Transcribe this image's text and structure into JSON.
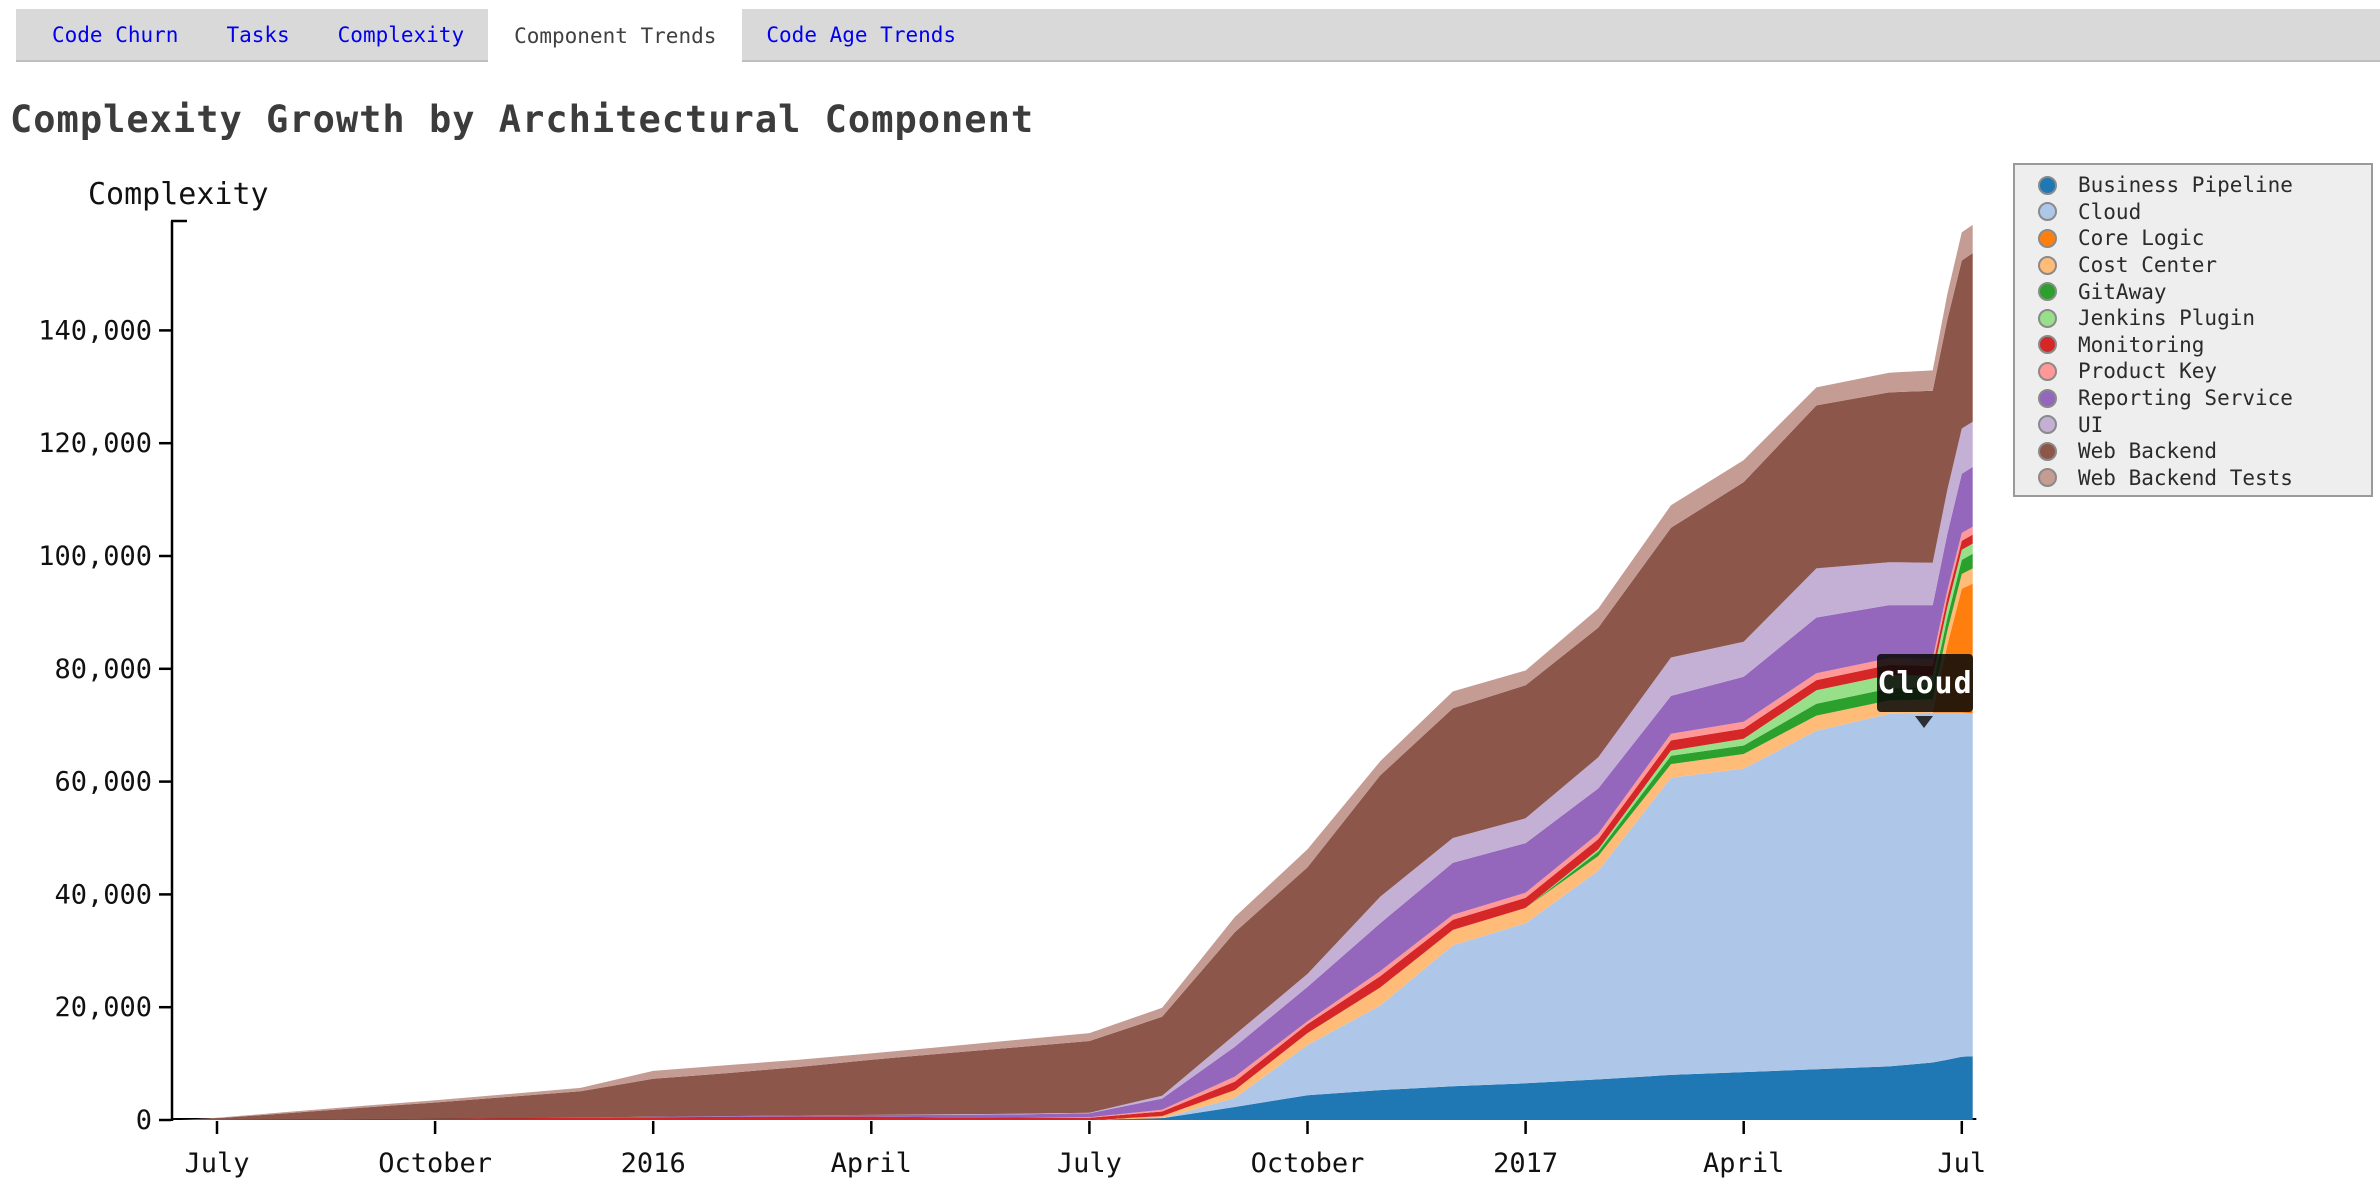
{
  "tabs": [
    {
      "label": "Code Churn",
      "active": false
    },
    {
      "label": "Tasks",
      "active": false
    },
    {
      "label": "Complexity",
      "active": false
    },
    {
      "label": "Component Trends",
      "active": true
    },
    {
      "label": "Code Age Trends",
      "active": false
    }
  ],
  "header": {
    "title": "Complexity Growth by Architectural Component"
  },
  "tooltip": {
    "label": "Cloud"
  },
  "colors": {
    "tab_link": "#0000ee",
    "tab_active_text": "#404040",
    "tabbar_bg": "#d9d9d9",
    "legend_bg": "#eeeeee",
    "legend_border": "#9a9a9a",
    "tooltip_bg": "#0a0a0a",
    "axis": "#000000",
    "title_text": "#3c3c3c"
  },
  "chart_data": {
    "type": "area",
    "stacked": true,
    "title": "Complexity Growth by Architectural Component",
    "xlabel": "",
    "ylabel": "Complexity",
    "ylim": [
      0,
      159000
    ],
    "yticks": [
      0,
      20000,
      40000,
      60000,
      80000,
      100000,
      120000,
      140000
    ],
    "grid": false,
    "legend_position": "right",
    "x_unit": "months_since_2015-07-01",
    "x": [
      -0.5,
      0,
      1,
      2,
      3,
      4,
      5,
      6,
      7,
      8,
      9,
      10,
      11,
      12,
      13,
      14,
      15,
      16,
      17,
      18,
      19,
      20,
      21,
      22,
      23,
      23.6,
      23.8,
      24,
      24.15
    ],
    "x_dates": [
      "2015-06-15",
      "2015-07-01",
      "2015-08-01",
      "2015-09-01",
      "2015-10-01",
      "2015-11-01",
      "2015-12-01",
      "2016-01-01",
      "2016-02-01",
      "2016-03-01",
      "2016-04-01",
      "2016-05-01",
      "2016-06-01",
      "2016-07-01",
      "2016-08-01",
      "2016-09-01",
      "2016-10-01",
      "2016-11-01",
      "2016-12-01",
      "2017-01-01",
      "2017-02-01",
      "2017-03-01",
      "2017-04-01",
      "2017-05-01",
      "2017-06-01",
      "2017-06-19",
      "2017-06-25",
      "2017-07-01",
      "2017-07-05"
    ],
    "x_ticks": [
      {
        "m": 0,
        "label": "July"
      },
      {
        "m": 3,
        "label": "October"
      },
      {
        "m": 6,
        "label": "2016"
      },
      {
        "m": 9,
        "label": "April"
      },
      {
        "m": 12,
        "label": "July"
      },
      {
        "m": 15,
        "label": "October"
      },
      {
        "m": 18,
        "label": "2017"
      },
      {
        "m": 21,
        "label": "April"
      },
      {
        "m": 24,
        "label": "Jul"
      }
    ],
    "series": [
      {
        "name": "Business Pipeline",
        "color": "#1f77b4",
        "values": [
          0,
          0,
          0,
          0,
          0,
          0,
          0,
          0,
          0,
          0,
          0,
          0,
          0,
          0,
          300,
          2300,
          4400,
          5300,
          6000,
          6500,
          7200,
          8000,
          8500,
          9000,
          9500,
          10200,
          10700,
          11200,
          11300
        ]
      },
      {
        "name": "Cloud",
        "color": "#aec7e8",
        "values": [
          0,
          0,
          0,
          0,
          0,
          0,
          0,
          0,
          0,
          0,
          0,
          0,
          0,
          0,
          0,
          1600,
          8900,
          15000,
          25000,
          28400,
          37000,
          52700,
          53800,
          60000,
          62500,
          62000,
          61500,
          61000,
          60800
        ]
      },
      {
        "name": "Core Logic",
        "color": "#ff7f0e",
        "values": [
          0,
          0,
          0,
          0,
          0,
          0,
          0,
          0,
          0,
          0,
          0,
          0,
          0,
          0,
          0,
          0,
          0,
          0,
          0,
          0,
          0,
          0,
          0,
          0,
          0,
          0,
          12000,
          22000,
          23000
        ]
      },
      {
        "name": "Cost Center",
        "color": "#ffbb78",
        "values": [
          0,
          0,
          0,
          0,
          0,
          0,
          0,
          0,
          0,
          0,
          0,
          0,
          0,
          0,
          400,
          1400,
          2100,
          3200,
          2700,
          2700,
          2600,
          2400,
          2600,
          2700,
          2400,
          2400,
          2500,
          2600,
          2700
        ]
      },
      {
        "name": "GitAway",
        "color": "#2ca02c",
        "values": [
          0,
          0,
          0,
          0,
          0,
          0,
          0,
          0,
          0,
          0,
          0,
          0,
          0,
          0,
          0,
          0,
          0,
          0,
          0,
          0,
          800,
          1500,
          1500,
          2100,
          2100,
          2200,
          2300,
          2500,
          2600
        ]
      },
      {
        "name": "Jenkins Plugin",
        "color": "#98df8a",
        "values": [
          0,
          0,
          0,
          0,
          0,
          0,
          0,
          0,
          0,
          0,
          0,
          0,
          0,
          0,
          0,
          0,
          0,
          0,
          0,
          0,
          400,
          900,
          1200,
          2400,
          2400,
          2000,
          1900,
          1800,
          1800
        ]
      },
      {
        "name": "Monitoring",
        "color": "#d62728",
        "values": [
          0,
          0,
          50,
          100,
          200,
          300,
          400,
          500,
          550,
          600,
          600,
          500,
          450,
          400,
          800,
          1500,
          1600,
          2000,
          1800,
          1800,
          1800,
          1800,
          1800,
          1800,
          1800,
          1700,
          1700,
          1600,
          1600
        ]
      },
      {
        "name": "Product Key",
        "color": "#ff9896",
        "values": [
          0,
          0,
          0,
          0,
          0,
          0,
          0,
          0,
          0,
          0,
          0,
          0,
          0,
          100,
          300,
          900,
          500,
          900,
          900,
          900,
          1000,
          1200,
          1200,
          1200,
          1200,
          1300,
          1300,
          1400,
          1400
        ]
      },
      {
        "name": "Reporting Service",
        "color": "#9467bd",
        "values": [
          0,
          0,
          0,
          0,
          0,
          0,
          0,
          100,
          150,
          200,
          300,
          400,
          550,
          700,
          2000,
          5300,
          6100,
          8500,
          9200,
          8800,
          8000,
          6700,
          8000,
          9900,
          9400,
          9500,
          10000,
          10500,
          10600
        ]
      },
      {
        "name": "UI",
        "color": "#c5b0d5",
        "values": [
          0,
          0,
          0,
          0,
          0,
          0,
          0,
          0,
          0,
          0,
          0,
          100,
          100,
          100,
          500,
          2100,
          2300,
          4700,
          4400,
          4400,
          5500,
          6800,
          6200,
          8700,
          7600,
          7500,
          7800,
          8000,
          8000
        ]
      },
      {
        "name": "Web Backend",
        "color": "#8c564b",
        "values": [
          0,
          300,
          1200,
          2100,
          2900,
          3800,
          4700,
          6700,
          7600,
          8600,
          9800,
          10800,
          11800,
          12700,
          14000,
          18200,
          18900,
          21500,
          23000,
          23600,
          23000,
          23000,
          28300,
          28900,
          30100,
          30500,
          30200,
          29800,
          29900
        ]
      },
      {
        "name": "Web Backend Tests",
        "color": "#c49c94",
        "values": [
          0,
          100,
          200,
          300,
          400,
          500,
          600,
          1400,
          1400,
          1300,
          1100,
          1200,
          1300,
          1400,
          1600,
          2700,
          3200,
          2500,
          3000,
          2600,
          3400,
          4000,
          3900,
          3200,
          3500,
          3600,
          4500,
          5000,
          5000
        ]
      }
    ]
  }
}
